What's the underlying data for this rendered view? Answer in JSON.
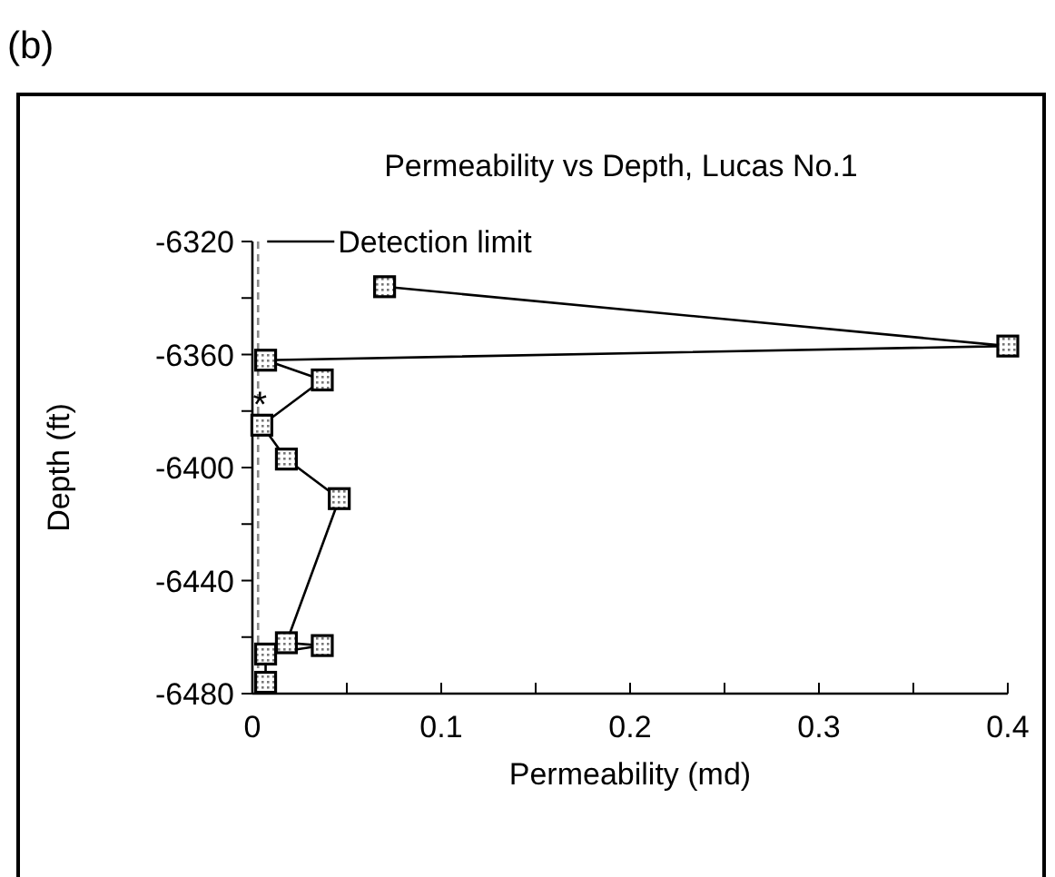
{
  "chart_data": {
    "type": "line",
    "title": "Permeability vs Depth, Lucas No.1",
    "xlabel": "Permeability (md)",
    "ylabel": "Depth (ft)",
    "x": [
      0.07,
      0.4,
      0.007,
      0.037,
      0.005,
      0.018,
      0.046,
      0.018,
      0.037,
      0.007,
      0.007
    ],
    "values": [
      -6336,
      -6357,
      -6362,
      -6369,
      -6385,
      -6397,
      -6411,
      -6462,
      -6463,
      -6466,
      -6476
    ],
    "color": "#000000",
    "marker": "square",
    "line_style": "solid",
    "grid": false,
    "xlim": [
      0,
      0.4
    ],
    "xticks": [
      0,
      {
        "value": 0.05,
        "label": null
      },
      0.1,
      {
        "value": 0.15,
        "label": null
      },
      0.2,
      {
        "value": 0.25,
        "label": null
      },
      0.3,
      {
        "value": 0.35,
        "label": null
      },
      0.4
    ],
    "ylim": [
      -6480,
      -6320
    ],
    "yticks": [
      -6320,
      {
        "value": -6340,
        "label": null
      },
      -6360,
      {
        "value": -6380,
        "label": null
      },
      -6400,
      {
        "value": -6420,
        "label": null
      },
      -6440,
      {
        "value": -6460,
        "label": null
      },
      -6480
    ],
    "ref_lines": [
      {
        "axis": "x",
        "value": 0.003,
        "label": "Detection limit",
        "line_style": "dashed",
        "color": "#888888"
      }
    ],
    "annotations": [
      "(b)",
      {
        "text": "*",
        "x": 0.004,
        "y": -6377
      }
    ]
  }
}
